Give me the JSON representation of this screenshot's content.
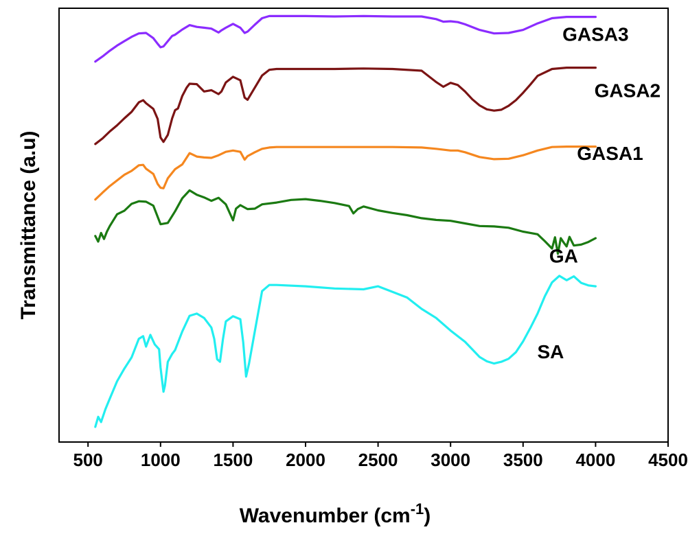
{
  "chart_data": {
    "type": "line",
    "title": "",
    "xlabel": "Wavenumber (cm",
    "xlabel_sup": "-1",
    "xlabel_close": ")",
    "ylabel": "Transmittance (a.u)",
    "xlim": [
      300,
      4500
    ],
    "ylim": [
      0,
      100
    ],
    "x_ticks": [
      500,
      1000,
      1500,
      2000,
      2500,
      3000,
      3500,
      4000,
      4500
    ],
    "x_tick_labels": [
      "500",
      "1000",
      "1500",
      "2000",
      "2500",
      "3000",
      "3500",
      "4000",
      "4500"
    ],
    "y_ticks_visible": false,
    "grid": false,
    "legend": "inline labels",
    "series": [
      {
        "name": "GASA3",
        "color": "#8b2cff",
        "label_at": [
          4000,
          92.5
        ],
        "x": [
          550,
          600,
          650,
          700,
          750,
          800,
          850,
          900,
          950,
          980,
          1000,
          1020,
          1050,
          1080,
          1100,
          1150,
          1200,
          1250,
          1300,
          1350,
          1400,
          1420,
          1450,
          1500,
          1550,
          1580,
          1600,
          1650,
          1700,
          1750,
          1800,
          2000,
          2200,
          2400,
          2600,
          2800,
          2900,
          2950,
          3000,
          3050,
          3100,
          3200,
          3300,
          3400,
          3500,
          3600,
          3700,
          3800,
          4000
        ],
        "y": [
          87.7,
          88.9,
          90.2,
          91.4,
          92.4,
          93.4,
          94.2,
          94.3,
          93.1,
          91.8,
          91.0,
          91.2,
          92.4,
          93.6,
          93.9,
          95.1,
          96.1,
          95.7,
          95.5,
          95.3,
          94.4,
          94.9,
          95.5,
          96.4,
          95.5,
          94.3,
          94.6,
          96.2,
          97.7,
          98.2,
          98.2,
          98.2,
          98.1,
          98.2,
          98.1,
          98.1,
          97.5,
          96.9,
          97.0,
          96.8,
          96.3,
          95.0,
          94.2,
          94.3,
          95.0,
          96.5,
          97.7,
          98.0,
          98.0
        ]
      },
      {
        "name": "GASA2",
        "color": "#7b1414",
        "label_at": [
          4220,
          79.5
        ],
        "x": [
          550,
          600,
          650,
          700,
          750,
          800,
          850,
          880,
          900,
          950,
          980,
          1000,
          1020,
          1050,
          1080,
          1100,
          1120,
          1150,
          1180,
          1200,
          1250,
          1300,
          1350,
          1400,
          1420,
          1450,
          1500,
          1550,
          1580,
          1600,
          1650,
          1700,
          1750,
          1800,
          2000,
          2200,
          2400,
          2600,
          2800,
          2900,
          2950,
          3000,
          3050,
          3100,
          3150,
          3200,
          3250,
          3300,
          3350,
          3400,
          3450,
          3500,
          3550,
          3600,
          3700,
          3800,
          4000
        ],
        "y": [
          68.7,
          70.0,
          71.6,
          73.0,
          74.6,
          76.1,
          78.3,
          78.8,
          78.1,
          76.8,
          74.5,
          70.2,
          69.2,
          70.8,
          74.6,
          76.5,
          76.9,
          79.8,
          81.7,
          82.6,
          82.5,
          80.8,
          81.1,
          80.2,
          80.8,
          82.9,
          84.2,
          83.4,
          79.4,
          78.9,
          81.7,
          84.5,
          85.8,
          86.0,
          86.0,
          86.0,
          86.1,
          86.0,
          85.6,
          83.0,
          81.9,
          82.8,
          82.3,
          80.8,
          79.0,
          77.6,
          76.7,
          76.4,
          76.6,
          77.5,
          78.8,
          80.5,
          82.4,
          84.4,
          86.0,
          86.3,
          86.3
        ]
      },
      {
        "name": "GASA1",
        "color": "#f5871f",
        "label_at": [
          4100,
          65.0
        ],
        "x": [
          550,
          600,
          650,
          700,
          750,
          800,
          850,
          880,
          900,
          950,
          980,
          1000,
          1020,
          1050,
          1100,
          1150,
          1200,
          1250,
          1300,
          1350,
          1400,
          1450,
          1500,
          1550,
          1580,
          1600,
          1650,
          1700,
          1750,
          1800,
          2000,
          2200,
          2400,
          2600,
          2800,
          2900,
          3000,
          3050,
          3100,
          3200,
          3300,
          3400,
          3500,
          3600,
          3700,
          3800,
          4000
        ],
        "y": [
          55.9,
          57.5,
          59.0,
          60.3,
          61.6,
          62.5,
          63.8,
          63.9,
          63.0,
          61.8,
          59.5,
          58.6,
          58.5,
          60.8,
          62.9,
          64.0,
          66.6,
          65.8,
          65.6,
          65.5,
          66.1,
          66.9,
          67.2,
          66.9,
          65.1,
          65.9,
          66.8,
          67.6,
          67.9,
          68.0,
          68.0,
          68.0,
          68.0,
          68.0,
          67.9,
          67.6,
          67.2,
          67.2,
          66.8,
          65.7,
          65.2,
          65.3,
          66.1,
          67.2,
          68.0,
          68.1,
          68.1
        ]
      },
      {
        "name": "GA",
        "color": "#1b7a12",
        "label_at": [
          3780,
          41.4
        ],
        "x": [
          550,
          570,
          590,
          610,
          630,
          650,
          700,
          750,
          800,
          850,
          900,
          950,
          1000,
          1050,
          1100,
          1150,
          1200,
          1250,
          1300,
          1350,
          1400,
          1450,
          1500,
          1520,
          1550,
          1600,
          1650,
          1700,
          1800,
          1900,
          2000,
          2100,
          2200,
          2300,
          2330,
          2360,
          2400,
          2500,
          2600,
          2700,
          2800,
          2900,
          3000,
          3100,
          3200,
          3300,
          3400,
          3500,
          3600,
          3650,
          3700,
          3720,
          3740,
          3760,
          3780,
          3800,
          3820,
          3850,
          3900,
          3950,
          4000
        ],
        "y": [
          47.5,
          46.2,
          48.2,
          46.8,
          48.5,
          49.8,
          52.5,
          53.3,
          54.9,
          55.5,
          55.4,
          54.5,
          50.2,
          50.5,
          53.2,
          56.2,
          58.0,
          57.0,
          56.4,
          55.6,
          56.3,
          54.8,
          51.1,
          53.8,
          54.6,
          53.7,
          53.8,
          54.8,
          55.2,
          55.8,
          56.0,
          55.6,
          55.1,
          54.4,
          52.7,
          53.7,
          54.3,
          53.4,
          52.8,
          52.3,
          51.6,
          51.2,
          51.0,
          50.4,
          49.8,
          49.7,
          49.4,
          48.5,
          47.9,
          46.3,
          44.6,
          47.2,
          43.4,
          47.0,
          46.0,
          45.1,
          47.3,
          45.3,
          45.5,
          46.1,
          47.0
        ]
      },
      {
        "name": "SA",
        "color": "#22eef0",
        "label_at": [
          3690,
          19.3
        ],
        "x": [
          550,
          570,
          590,
          620,
          650,
          700,
          750,
          800,
          850,
          880,
          900,
          930,
          960,
          990,
          1000,
          1010,
          1020,
          1030,
          1050,
          1080,
          1100,
          1150,
          1200,
          1250,
          1300,
          1350,
          1370,
          1390,
          1410,
          1430,
          1450,
          1500,
          1550,
          1570,
          1590,
          1610,
          1650,
          1700,
          1750,
          1800,
          2000,
          2200,
          2400,
          2500,
          2600,
          2700,
          2800,
          2900,
          3000,
          3100,
          3200,
          3250,
          3300,
          3350,
          3400,
          3450,
          3500,
          3550,
          3600,
          3650,
          3700,
          3750,
          3800,
          3850,
          3900,
          3950,
          4000
        ],
        "y": [
          3.5,
          5.8,
          4.6,
          7.6,
          10.0,
          14.0,
          16.9,
          19.5,
          23.8,
          24.4,
          22.0,
          24.7,
          22.5,
          21.4,
          17.2,
          14.4,
          11.6,
          13.0,
          18.5,
          20.3,
          21.2,
          25.5,
          29.1,
          29.6,
          28.6,
          26.4,
          23.8,
          19.1,
          18.5,
          23.6,
          27.8,
          29.0,
          28.3,
          23.0,
          15.1,
          18.1,
          25.5,
          34.8,
          36.2,
          36.2,
          35.9,
          35.4,
          35.2,
          35.9,
          34.6,
          33.3,
          30.7,
          28.6,
          25.7,
          23.1,
          19.6,
          18.6,
          18.1,
          18.5,
          19.2,
          20.7,
          23.2,
          26.3,
          29.6,
          33.6,
          36.8,
          38.3,
          37.3,
          38.2,
          36.7,
          36.1,
          35.9
        ]
      }
    ]
  }
}
